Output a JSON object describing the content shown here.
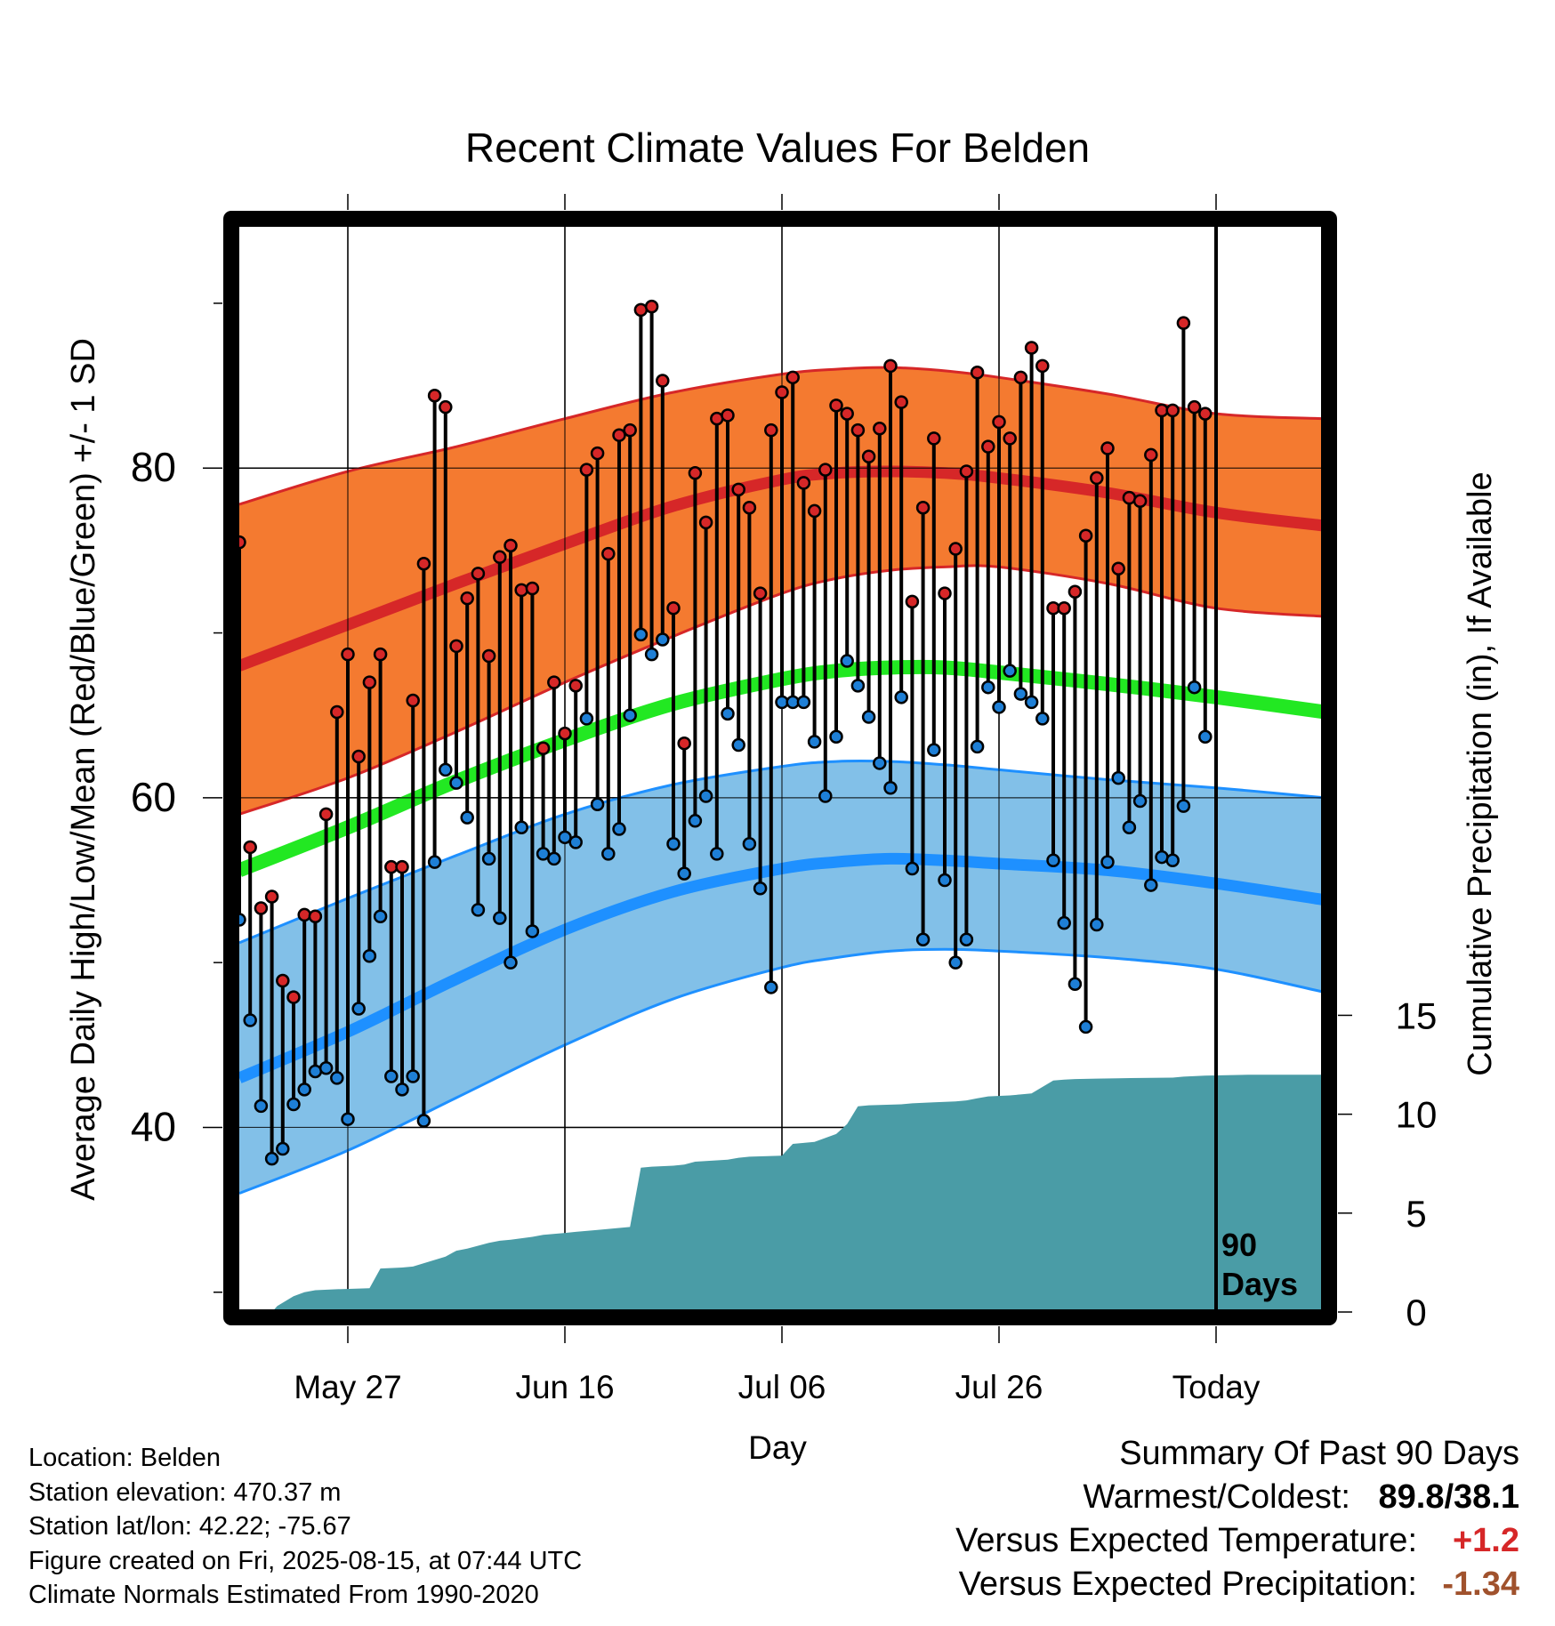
{
  "chart_data": {
    "type": "line",
    "title": "Recent Climate Values For Belden",
    "xlabel": "Day",
    "ylabel": "Average Daily High/Low/Mean (Red/Blue/Green) +/- 1 SD",
    "y2label": "Cumulative Precipitation (in), If Available",
    "x_ticks": [
      "May 27",
      "Jun 16",
      "Jul 06",
      "Jul 26",
      "Today"
    ],
    "x_tick_days": [
      10,
      30,
      50,
      70,
      90
    ],
    "xlim": [
      0,
      100
    ],
    "y_ticks": [
      40,
      60,
      80
    ],
    "ylim": [
      28.8,
      94.8
    ],
    "y2_ticks": [
      0,
      5,
      10,
      15
    ],
    "y2lim": [
      0,
      55
    ],
    "window_label": "90 Days",
    "colors": {
      "high_band": "#f47a30",
      "high_line": "#d62728",
      "mean_line": "#22e822",
      "low_band": "#82c0e8",
      "low_line": "#1e90ff",
      "precip": "#4a9ca6",
      "high_dot": "#d62728",
      "low_dot": "#1e7fd6"
    },
    "normal_high": {
      "day": [
        0,
        10,
        20,
        30,
        40,
        50,
        55,
        60,
        65,
        70,
        80,
        90,
        100
      ],
      "mean": [
        68.0,
        70.5,
        73.0,
        75.4,
        77.7,
        79.3,
        79.7,
        79.8,
        79.7,
        79.4,
        78.5,
        77.3,
        76.5
      ],
      "upper": [
        77.8,
        79.8,
        81.3,
        83.0,
        84.6,
        85.7,
        86.0,
        86.1,
        85.9,
        85.5,
        84.5,
        83.3,
        83.0
      ],
      "lower": [
        59.0,
        61.2,
        64.0,
        67.0,
        69.8,
        72.4,
        73.3,
        73.8,
        74.0,
        74.0,
        73.0,
        71.5,
        71.0
      ]
    },
    "normal_mean": {
      "day": [
        0,
        10,
        20,
        30,
        40,
        50,
        55,
        60,
        65,
        70,
        80,
        90,
        100
      ],
      "mean": [
        55.6,
        58.2,
        61.0,
        63.5,
        65.7,
        67.2,
        67.7,
        67.9,
        67.9,
        67.6,
        66.9,
        66.1,
        65.2
      ]
    },
    "normal_low": {
      "day": [
        0,
        10,
        20,
        30,
        40,
        50,
        55,
        60,
        65,
        70,
        80,
        90,
        100
      ],
      "mean": [
        43.0,
        45.8,
        49.0,
        52.0,
        54.3,
        55.7,
        56.1,
        56.3,
        56.2,
        56.0,
        55.6,
        54.8,
        53.8
      ],
      "upper": [
        51.2,
        53.9,
        56.5,
        59.0,
        60.8,
        61.9,
        62.2,
        62.2,
        62.0,
        61.7,
        61.1,
        60.6,
        60.0
      ],
      "lower": [
        36.0,
        38.6,
        41.8,
        45.0,
        47.8,
        49.7,
        50.3,
        50.7,
        50.8,
        50.7,
        50.3,
        49.6,
        48.2
      ]
    },
    "series": [
      {
        "name": "High",
        "values": [
          75.5,
          57.0,
          53.3,
          54.0,
          48.9,
          47.9,
          52.9,
          52.8,
          59.0,
          65.2,
          68.7,
          62.5,
          67.0,
          68.7,
          55.8,
          55.8,
          65.9,
          74.2,
          84.4,
          83.7,
          69.2,
          72.1,
          73.6,
          68.6,
          74.6,
          75.3,
          72.6,
          72.7,
          63.0,
          67.0,
          63.9,
          66.8,
          79.9,
          80.9,
          74.8,
          82.0,
          82.3,
          89.6,
          89.8,
          85.3,
          71.5,
          63.3,
          79.7,
          76.7,
          83.0,
          83.2,
          78.7,
          77.6,
          72.4,
          82.3,
          84.6,
          85.5,
          79.1,
          77.4,
          79.9,
          83.8,
          83.3,
          82.3,
          80.7,
          82.4,
          86.2,
          84.0,
          71.9,
          77.6,
          81.8,
          72.4,
          75.1,
          79.8,
          85.8,
          81.3,
          82.8,
          81.8,
          85.5,
          87.3,
          86.2,
          71.5,
          71.5,
          72.5,
          75.9,
          79.4,
          81.2,
          73.9,
          78.2,
          78.0,
          80.8,
          83.5,
          83.5,
          88.8,
          83.7,
          83.3
        ],
        "lows": [
          52.6,
          46.5,
          41.3,
          38.1,
          38.7,
          41.4,
          42.3,
          43.4,
          43.6,
          43.0,
          40.5,
          47.2,
          50.4,
          52.8,
          43.1,
          42.3,
          43.1,
          40.4,
          56.1,
          61.7,
          60.9,
          58.8,
          53.2,
          56.3,
          52.7,
          50.0,
          58.2,
          51.9,
          56.6,
          56.3,
          57.6,
          57.3,
          64.8,
          59.6,
          56.6,
          58.1,
          65.0,
          69.9,
          68.7,
          69.6,
          57.2,
          55.4,
          58.6,
          60.1,
          56.6,
          65.1,
          63.2,
          57.2,
          54.5,
          48.5,
          65.8,
          65.8,
          65.8,
          63.4,
          60.1,
          63.7,
          68.3,
          66.8,
          64.9,
          62.1,
          60.6,
          66.1,
          55.7,
          51.4,
          62.9,
          55.0,
          50.0,
          51.4,
          63.1,
          66.7,
          65.5,
          67.7,
          66.3,
          65.8,
          64.8,
          56.2,
          52.4,
          48.7,
          46.1,
          52.3,
          56.1,
          61.2,
          58.2,
          59.8,
          54.7,
          56.4,
          56.2,
          59.5,
          66.7,
          63.7
        ]
      },
      {
        "name": "Cumulative Precipitation",
        "x": [
          0,
          3,
          3.5,
          5,
          6,
          7,
          9,
          12,
          13,
          15,
          16,
          19,
          20,
          21,
          23,
          24,
          25,
          27,
          28,
          30,
          31,
          33,
          35,
          36,
          37,
          38,
          40,
          41,
          42,
          45,
          46,
          47,
          50,
          51,
          52,
          53,
          55,
          56,
          57,
          58,
          61,
          62,
          64,
          66,
          67,
          68,
          69,
          71,
          72,
          73,
          75,
          76,
          77,
          79,
          81,
          86,
          87,
          89,
          93,
          100
        ],
        "values": [
          0,
          0,
          0.3,
          0.8,
          1.0,
          1.1,
          1.15,
          1.2,
          2.2,
          2.25,
          2.3,
          2.8,
          3.1,
          3.2,
          3.5,
          3.6,
          3.65,
          3.8,
          3.9,
          4.0,
          4.05,
          4.15,
          4.25,
          4.3,
          7.3,
          7.35,
          7.4,
          7.45,
          7.6,
          7.7,
          7.8,
          7.85,
          7.9,
          8.5,
          8.55,
          8.6,
          9.0,
          9.5,
          10.4,
          10.45,
          10.5,
          10.55,
          10.6,
          10.65,
          10.7,
          10.8,
          10.9,
          10.95,
          11.0,
          11.05,
          11.7,
          11.75,
          11.78,
          11.8,
          11.82,
          11.85,
          11.9,
          11.95,
          12.0,
          12.0
        ]
      }
    ]
  },
  "footer": {
    "location": "Location: Belden",
    "elevation": "Station elevation: 470.37 m",
    "latlon": "Station lat/lon: 42.22; -75.67",
    "created": "Figure created on Fri, 2025-08-15, at 07:44 UTC",
    "normals": "Climate Normals Estimated From 1990-2020"
  },
  "summary": {
    "title": "Summary Of Past 90 Days",
    "warmest_coldest_label": "Warmest/Coldest:",
    "warmest_coldest_value": "89.8/38.1",
    "temp_label": "Versus Expected Temperature:",
    "temp_value": "+1.2",
    "precip_label": "Versus Expected Precipitation:",
    "precip_value": "-1.34"
  }
}
